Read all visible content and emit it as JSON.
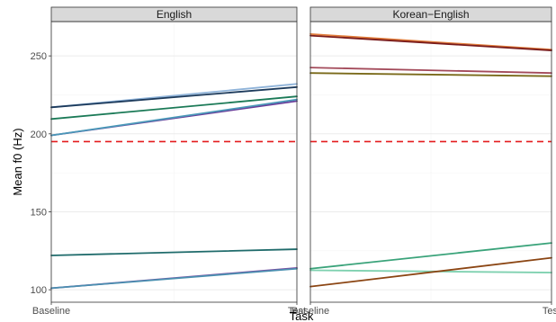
{
  "chart_data": {
    "type": "line",
    "xlabel": "Task",
    "ylabel": "Mean f0 (Hz)",
    "categories": [
      "Baseline",
      "Test"
    ],
    "ylim": [
      92,
      272
    ],
    "yticks": [
      100,
      150,
      200,
      250
    ],
    "reference_line": {
      "y": 195,
      "color": "#e41a1c",
      "style": "dashed"
    },
    "grid": true,
    "panels": [
      {
        "title": "English",
        "series": [
          {
            "values": [
              217,
              232
            ],
            "color": "#8fb3d9"
          },
          {
            "values": [
              217,
              230
            ],
            "color": "#1d3b5c"
          },
          {
            "values": [
              209.5,
              224
            ],
            "color": "#1b7a57"
          },
          {
            "values": [
              199,
              221
            ],
            "color": "#6a3d9a"
          },
          {
            "values": [
              199,
              222
            ],
            "color": "#4a98b8"
          },
          {
            "values": [
              122,
              126
            ],
            "color": "#1f6b6b"
          },
          {
            "values": [
              101,
              114
            ],
            "color": "#7b4fa3"
          },
          {
            "values": [
              101,
              113.5
            ],
            "color": "#4a8fb0"
          }
        ]
      },
      {
        "title": "Korean−English",
        "series": [
          {
            "values": [
              264,
              254
            ],
            "color": "#e07b39"
          },
          {
            "values": [
              263,
              253.5
            ],
            "color": "#7a1c1c"
          },
          {
            "values": [
              242.5,
              239
            ],
            "color": "#a34a5a"
          },
          {
            "values": [
              239,
              237
            ],
            "color": "#7a6a1a"
          },
          {
            "values": [
              113.5,
              130
            ],
            "color": "#3aa37a"
          },
          {
            "values": [
              112.5,
              111
            ],
            "color": "#7fd1b0"
          },
          {
            "values": [
              102,
              120.5
            ],
            "color": "#8b4513"
          }
        ]
      }
    ]
  }
}
